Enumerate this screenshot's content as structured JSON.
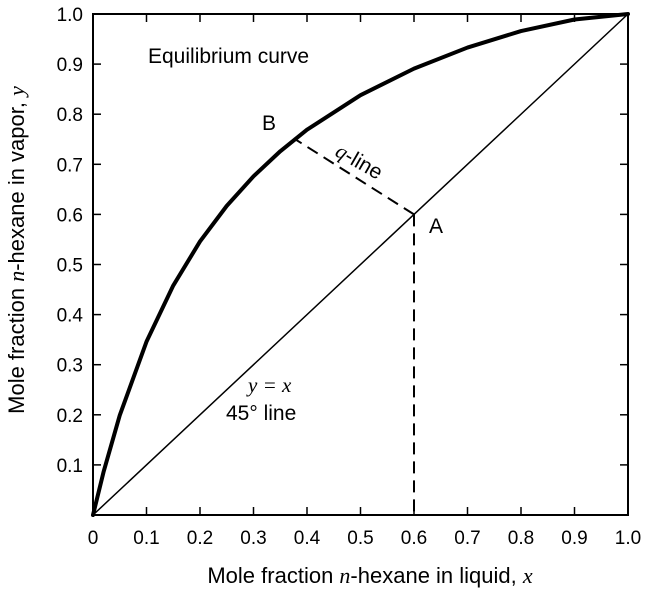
{
  "chart_data": {
    "type": "line",
    "title": "",
    "xlabel": {
      "prefix": "Mole fraction ",
      "var": "n",
      "mid": "-hexane in liquid, ",
      "sym": "x"
    },
    "ylabel": {
      "prefix": "Mole fraction ",
      "var": "n",
      "mid": "-hexane in vapor, ",
      "sym": "y"
    },
    "xlim": [
      0,
      1.0
    ],
    "ylim": [
      0,
      1.0
    ],
    "x_ticks": [
      "0",
      "0.1",
      "0.2",
      "0.3",
      "0.4",
      "0.5",
      "0.6",
      "0.7",
      "0.8",
      "0.9",
      "1.0"
    ],
    "y_ticks": [
      "0.1",
      "0.2",
      "0.3",
      "0.4",
      "0.5",
      "0.6",
      "0.7",
      "0.8",
      "0.9",
      "1.0"
    ],
    "series": [
      {
        "name": "Equilibrium curve",
        "style": "thick",
        "x": [
          0,
          0.02,
          0.05,
          0.1,
          0.15,
          0.2,
          0.25,
          0.3,
          0.35,
          0.4,
          0.5,
          0.6,
          0.7,
          0.8,
          0.9,
          1.0
        ],
        "y": [
          0,
          0.087,
          0.199,
          0.346,
          0.458,
          0.546,
          0.617,
          0.676,
          0.726,
          0.769,
          0.838,
          0.891,
          0.933,
          0.966,
          0.989,
          1.0
        ]
      },
      {
        "name": "45° line",
        "style": "thin",
        "x": [
          0,
          1.0
        ],
        "y": [
          0,
          1.0
        ]
      }
    ],
    "q_line": {
      "x": [
        0.6,
        0.375
      ],
      "y": [
        0.6,
        0.752
      ],
      "style": "dashed"
    },
    "drop_line": {
      "x": [
        0.6,
        0.6
      ],
      "y": [
        0.6,
        0
      ],
      "style": "dashed"
    },
    "annotations": {
      "equilibrium": "Equilibrium curve",
      "point_a": "A",
      "point_b": "B",
      "q_line": {
        "var": "q",
        "rest": "-line"
      },
      "yx": {
        "a": "y",
        "eq": " = ",
        "b": "x"
      },
      "deg45": "45° line"
    },
    "colors": {
      "ink": "#000000",
      "background": "#ffffff"
    }
  }
}
